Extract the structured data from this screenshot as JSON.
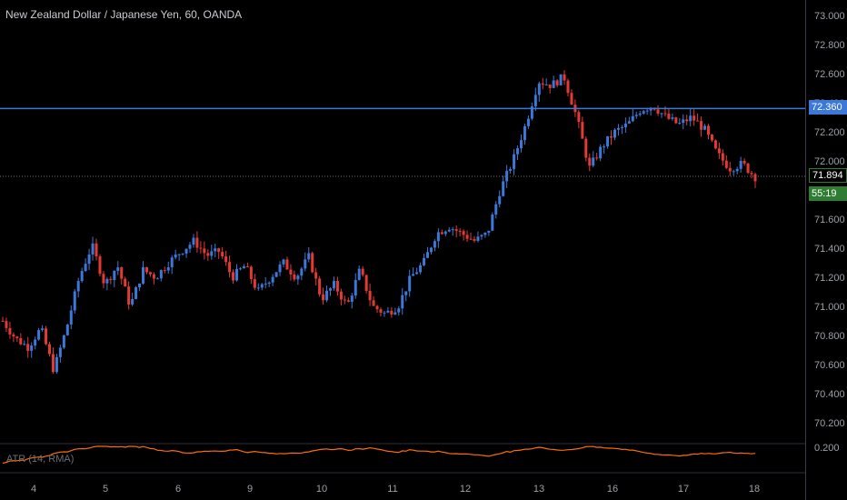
{
  "header": {
    "title": "New Zealand Dollar / Japanese Yen, 60, OANDA"
  },
  "price_scale": {
    "ticks": [
      "73.000",
      "72.800",
      "72.600",
      "72.400",
      "72.200",
      "72.000",
      "71.800",
      "71.600",
      "71.400",
      "71.200",
      "71.000",
      "70.800",
      "70.600",
      "70.400",
      "70.200"
    ]
  },
  "horizontal_line": {
    "value": 72.36,
    "label": "72.360",
    "color": "#3c78d8"
  },
  "last_price": {
    "value": 71.894,
    "label": "71.894",
    "countdown": "55:19",
    "color": "#2e7d32"
  },
  "time_axis": {
    "labels": [
      "4",
      "5",
      "6",
      "9",
      "10",
      "11",
      "12",
      "13",
      "16",
      "17",
      "18"
    ]
  },
  "indicator": {
    "label": "ATR (14, RMA)",
    "scale_label": "0.200",
    "color": "#ff6d00"
  },
  "chart_data": {
    "type": "candlestick",
    "title": "New Zealand Dollar / Japanese Yen, 60, OANDA",
    "ylim": [
      70.1,
      73.05
    ],
    "up_color": "#3c78d8",
    "down_color": "#e53935",
    "x_ticks": [
      "4",
      "5",
      "6",
      "9",
      "10",
      "11",
      "12",
      "13",
      "16",
      "17",
      "18"
    ],
    "close_path": [
      [
        "4",
        70.9
      ],
      [
        "4",
        70.78
      ],
      [
        "4",
        70.72
      ],
      [
        "4",
        70.85
      ],
      [
        "4",
        70.56
      ],
      [
        "4",
        70.85
      ],
      [
        "5",
        71.2
      ],
      [
        "5",
        71.42
      ],
      [
        "5",
        71.15
      ],
      [
        "5",
        71.28
      ],
      [
        "5",
        71.0
      ],
      [
        "5",
        71.25
      ],
      [
        "6",
        71.2
      ],
      [
        "6",
        71.3
      ],
      [
        "6",
        71.38
      ],
      [
        "6",
        71.45
      ],
      [
        "6",
        71.35
      ],
      [
        "6",
        71.38
      ],
      [
        "9",
        71.2
      ],
      [
        "9",
        71.28
      ],
      [
        "9",
        71.1
      ],
      [
        "9",
        71.2
      ],
      [
        "9",
        71.3
      ],
      [
        "9",
        71.2
      ],
      [
        "10",
        71.34
      ],
      [
        "10",
        71.05
      ],
      [
        "10",
        71.15
      ],
      [
        "10",
        71.0
      ],
      [
        "10",
        71.25
      ],
      [
        "10",
        71.0
      ],
      [
        "11",
        70.95
      ],
      [
        "11",
        71.0
      ],
      [
        "11",
        71.2
      ],
      [
        "11",
        71.3
      ],
      [
        "11",
        71.5
      ],
      [
        "11",
        71.55
      ],
      [
        "12",
        71.5
      ],
      [
        "12",
        71.45
      ],
      [
        "12",
        71.5
      ],
      [
        "12",
        71.8
      ],
      [
        "12",
        72.0
      ],
      [
        "12",
        72.25
      ],
      [
        "13",
        72.55
      ],
      [
        "13",
        72.52
      ],
      [
        "13",
        72.58
      ],
      [
        "13",
        72.3
      ],
      [
        "13",
        71.95
      ],
      [
        "13",
        72.1
      ],
      [
        "16",
        72.2
      ],
      [
        "16",
        72.25
      ],
      [
        "16",
        72.35
      ],
      [
        "16",
        72.38
      ],
      [
        "16",
        72.3
      ],
      [
        "16",
        72.25
      ],
      [
        "17",
        72.3
      ],
      [
        "17",
        72.22
      ],
      [
        "17",
        72.05
      ],
      [
        "17",
        71.95
      ],
      [
        "17",
        71.98
      ],
      [
        "17",
        71.89
      ]
    ],
    "atr": {
      "name": "ATR (14, RMA)",
      "scale_tick": 0.2
    }
  }
}
